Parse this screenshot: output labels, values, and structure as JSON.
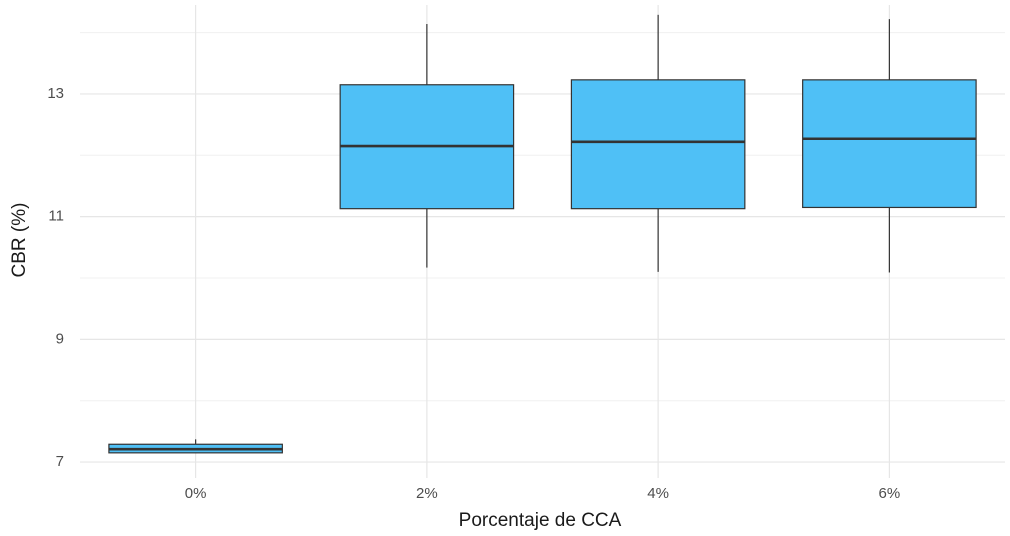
{
  "chart_data": {
    "type": "box",
    "x_label": "Porcentaje de CCA",
    "y_label": "CBR (%)",
    "categories": [
      "0%",
      "2%",
      "4%",
      "6%"
    ],
    "boxes": [
      {
        "min": 7.15,
        "q1": 7.15,
        "median": 7.21,
        "q3": 7.29,
        "max": 7.37
      },
      {
        "min": 10.17,
        "q1": 11.13,
        "median": 12.15,
        "q3": 13.15,
        "max": 14.14
      },
      {
        "min": 10.1,
        "q1": 11.13,
        "median": 12.22,
        "q3": 13.23,
        "max": 14.29
      },
      {
        "min": 10.09,
        "q1": 11.15,
        "median": 12.27,
        "q3": 13.23,
        "max": 14.22
      }
    ],
    "color": "#4fc0f6",
    "ylim": [
      6.74,
      14.45
    ],
    "yticks": [
      7,
      9,
      11,
      13
    ],
    "grid": true
  }
}
